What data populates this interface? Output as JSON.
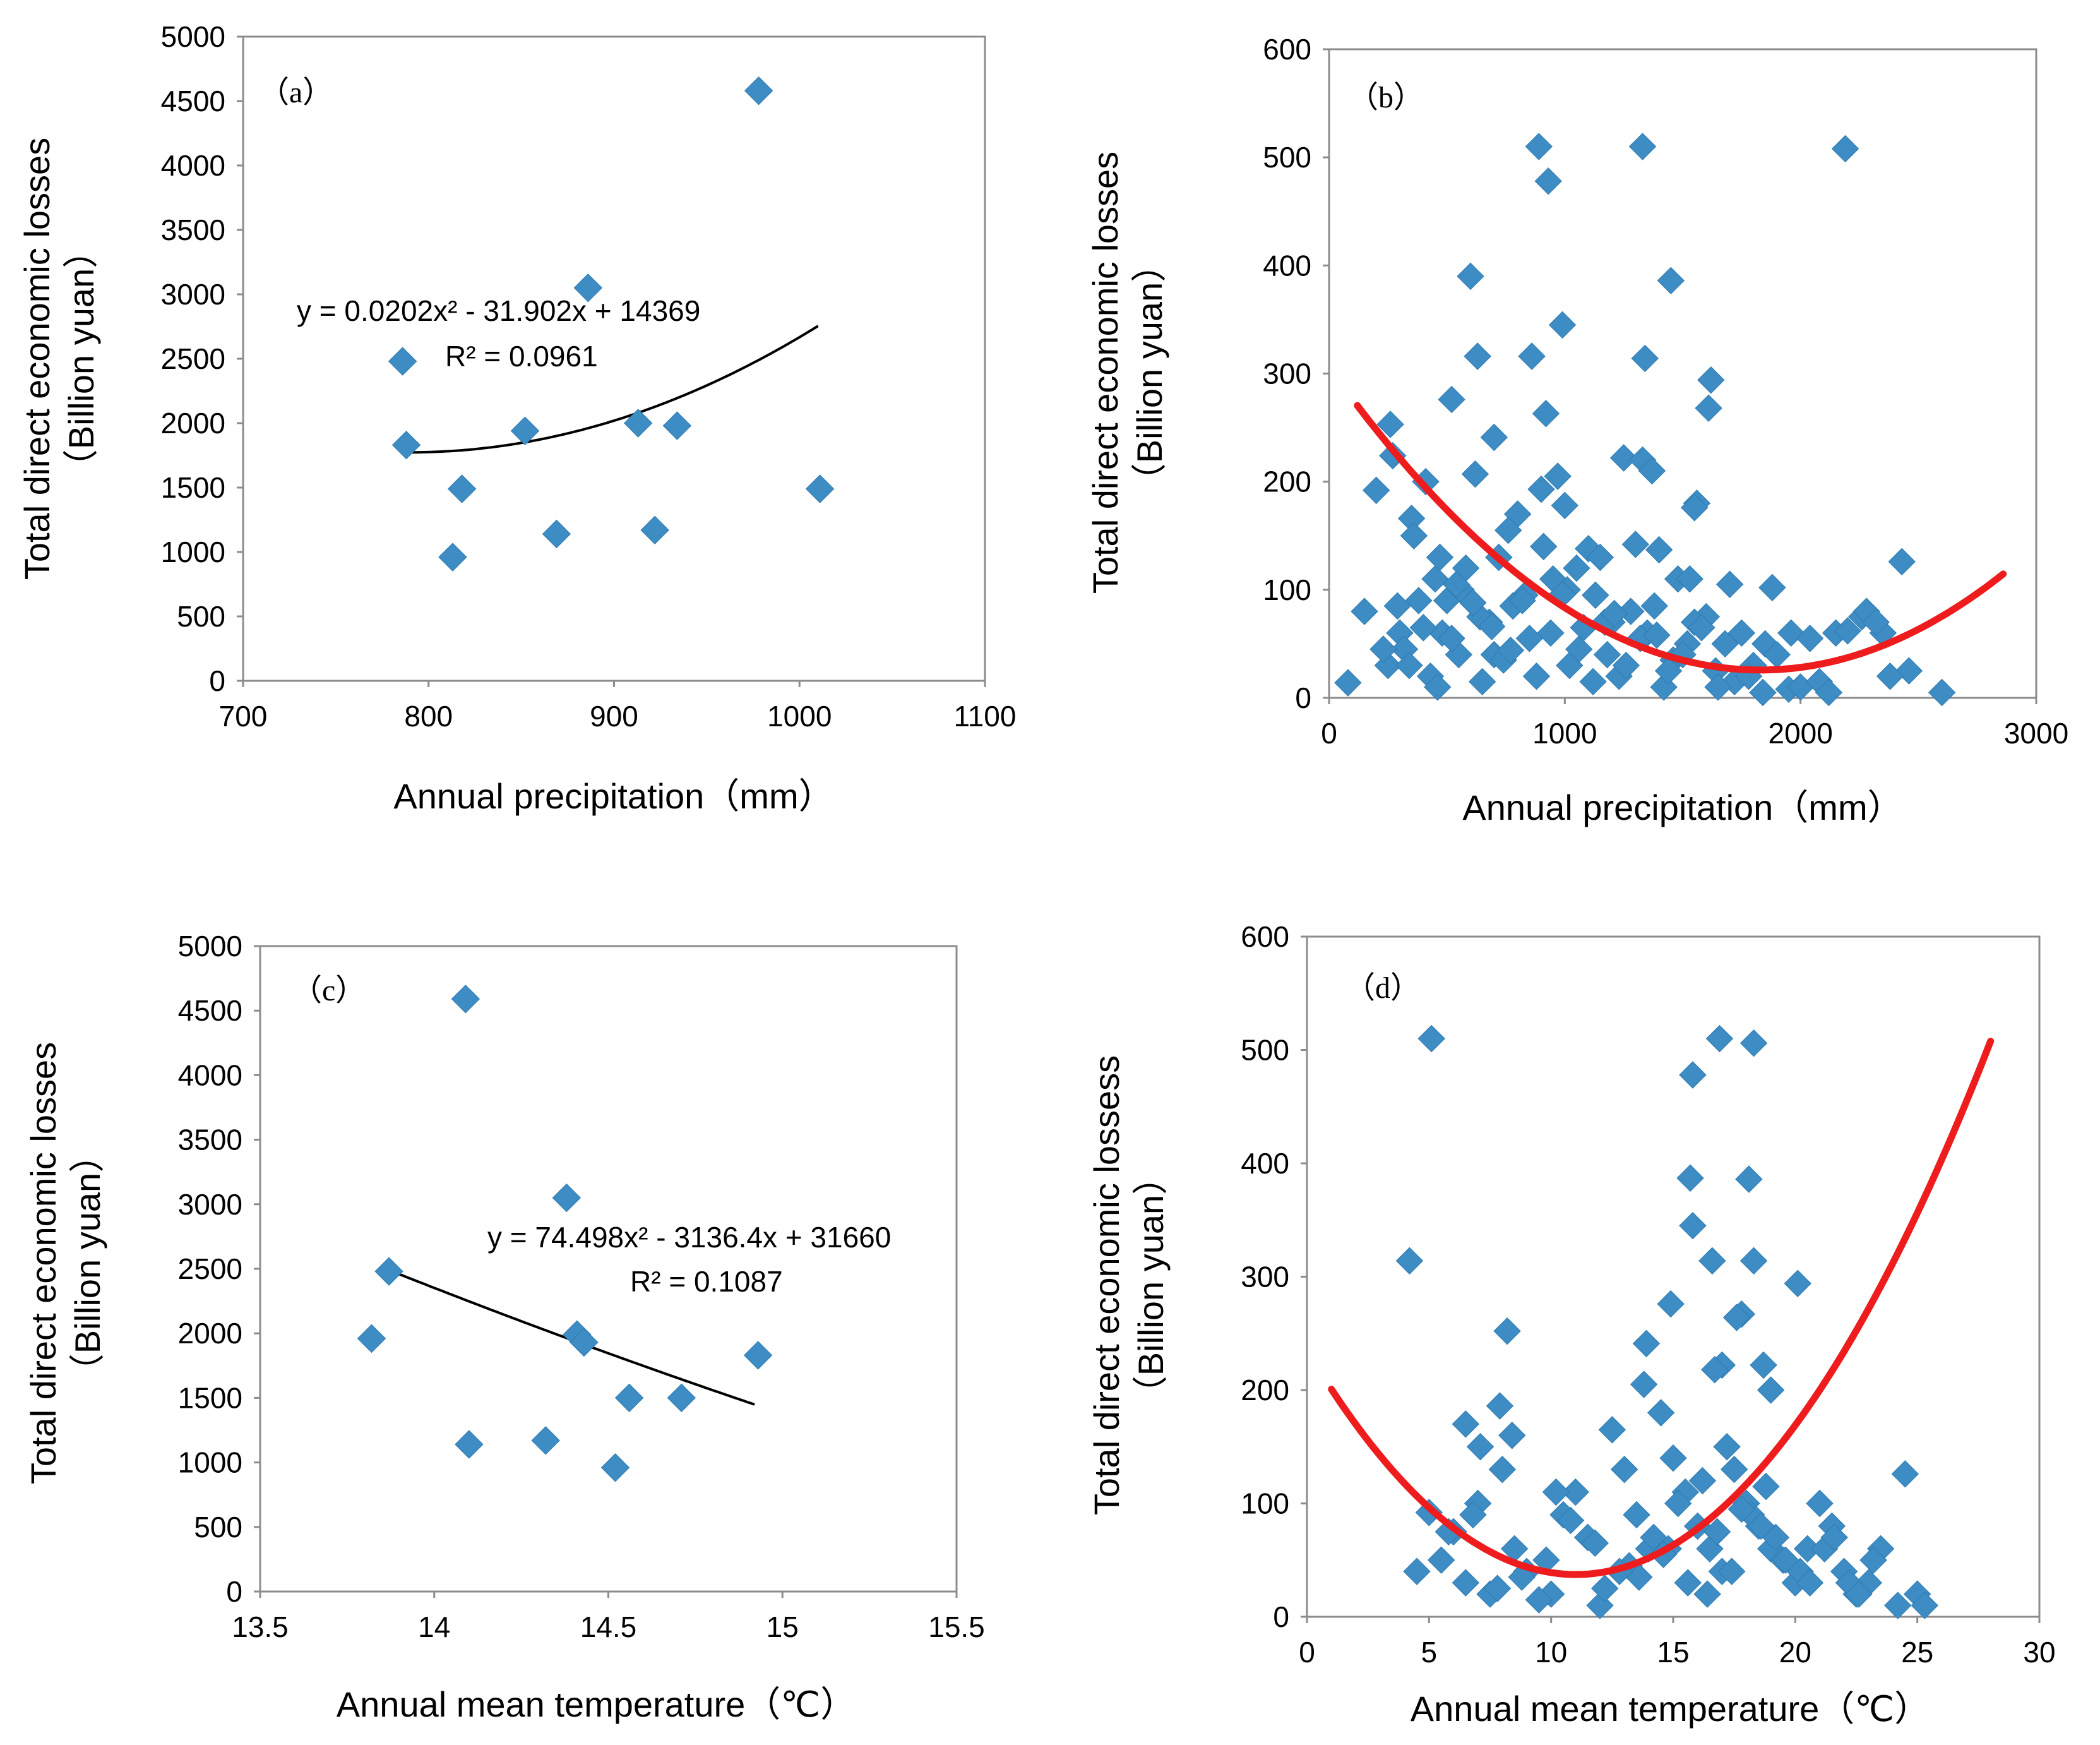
{
  "colors": {
    "marker": "#3d8cc4",
    "trend_a": "#000000",
    "trend_b": "#ee1c1c",
    "frame": "#8c8c8c"
  },
  "chart_data": [
    {
      "id": "a",
      "type": "scatter",
      "panel_label": "（a）",
      "xlabel": "Annual precipitation（mm）",
      "ylabel_line1": "Total direct economic losses",
      "ylabel_line2": "（Billion yuan）",
      "xlim": [
        700,
        1100
      ],
      "ylim": [
        0,
        5000
      ],
      "xticks": [
        700,
        800,
        900,
        1000,
        1100
      ],
      "yticks": [
        0,
        500,
        1000,
        1500,
        2000,
        2500,
        3000,
        3500,
        4000,
        4500,
        5000
      ],
      "x": [
        786,
        788,
        813,
        818,
        852,
        869,
        886,
        913,
        922,
        934,
        978,
        1011
      ],
      "y": [
        2480,
        1830,
        960,
        1490,
        1940,
        1140,
        3050,
        2000,
        1170,
        1980,
        4580,
        1490
      ],
      "fit": {
        "kind": "poly2",
        "a": 0.0202,
        "b": -31.902,
        "c": 14369,
        "x_range": [
          790,
          1010
        ]
      },
      "equation": {
        "text": "y = 0.0202x² - 31.902x + 14369",
        "r2": "R² = 0.0961"
      }
    },
    {
      "id": "b",
      "type": "scatter",
      "panel_label": "（b）",
      "xlabel": "Annual precipitation（mm）",
      "ylabel_line1": "Total direct economic losses",
      "ylabel_line2": "（Billion yuan）",
      "xlim": [
        0,
        3000
      ],
      "ylim": [
        0,
        600
      ],
      "xticks": [
        0,
        1000,
        2000,
        3000
      ],
      "yticks": [
        0,
        100,
        200,
        300,
        400,
        500,
        600
      ],
      "x": [
        890,
        1330,
        2190,
        930,
        600,
        1450,
        630,
        990,
        860,
        1340,
        1620,
        1610,
        520,
        920,
        700,
        1250,
        1330,
        1370,
        200,
        260,
        270,
        410,
        620,
        900,
        970,
        1560,
        1550,
        350,
        800,
        1000,
        1100,
        1300,
        1400,
        1150,
        1700,
        1880,
        1960,
        2150,
        2260,
        2350,
        2430,
        2460,
        2380,
        2040,
        1950,
        2600,
        80,
        150,
        300,
        450,
        500,
        550,
        680,
        720,
        760,
        830,
        1050,
        1200,
        1480,
        1520,
        1600,
        1750,
        1800,
        1850,
        1900,
        2000,
        2080,
        2120,
        250,
        320,
        380,
        430,
        480,
        560,
        650,
        700,
        780,
        850,
        950,
        1020,
        1080,
        1130,
        1180,
        1230,
        1280,
        1350,
        1420,
        1460,
        1550,
        1640,
        1680,
        1720,
        230,
        290,
        340,
        400,
        460,
        520,
        580,
        640,
        740,
        820,
        880,
        940,
        1010,
        1060,
        1120,
        1170,
        1260,
        1320,
        1380,
        1440,
        1500,
        1580,
        1650,
        1780,
        1840,
        360,
        470,
        540,
        610,
        690,
        770,
        910,
        990,
        1210,
        1390,
        1530,
        2200,
        2280,
        2320
      ],
      "y": [
        510,
        510,
        508,
        478,
        390,
        386,
        316,
        345,
        316,
        314,
        294,
        268,
        276,
        263,
        241,
        222,
        220,
        210,
        192,
        253,
        224,
        200,
        207,
        193,
        205,
        180,
        176,
        166,
        170,
        178,
        138,
        142,
        137,
        130,
        105,
        102,
        60,
        60,
        75,
        60,
        126,
        25,
        20,
        55,
        8,
        5,
        14,
        80,
        60,
        110,
        90,
        40,
        70,
        130,
        155,
        95,
        120,
        70,
        110,
        50,
        75,
        60,
        30,
        50,
        40,
        10,
        15,
        5,
        30,
        45,
        90,
        20,
        60,
        100,
        15,
        40,
        85,
        55,
        110,
        30,
        65,
        95,
        40,
        20,
        80,
        60,
        10,
        35,
        70,
        25,
        50,
        15,
        45,
        85,
        30,
        65,
        10,
        55,
        120,
        75,
        35,
        90,
        20,
        60,
        100,
        45,
        15,
        70,
        30,
        55,
        85,
        25,
        40,
        65,
        10,
        20,
        5,
        150,
        130,
        105,
        88,
        66,
        44,
        140,
        96,
        78,
        58,
        110,
        62,
        80,
        70
      ],
      "fit": {
        "kind": "poly2",
        "a": 8.37e-05,
        "b": -0.3063,
        "c": 306,
        "x_range": [
          120,
          2860
        ]
      }
    },
    {
      "id": "c",
      "type": "scatter",
      "panel_label": "（c）",
      "xlabel": "Annual mean temperature（℃）",
      "ylabel_line1": "Total direct economic losses",
      "ylabel_line2": "（Billion yuan）",
      "xlim": [
        13.5,
        15.5
      ],
      "ylim": [
        0,
        5000
      ],
      "xticks": [
        13.5,
        14,
        14.5,
        15,
        15.5
      ],
      "yticks": [
        0,
        500,
        1000,
        1500,
        2000,
        2500,
        3000,
        3500,
        4000,
        4500,
        5000
      ],
      "x": [
        13.82,
        13.87,
        14.09,
        14.1,
        14.32,
        14.38,
        14.41,
        14.43,
        14.52,
        14.56,
        14.71,
        14.93
      ],
      "y": [
        1960,
        2480,
        4590,
        1140,
        1170,
        3050,
        1990,
        1930,
        960,
        1500,
        1500,
        1830
      ],
      "fit": {
        "kind": "poly2",
        "a": 74.498,
        "b": -3136.4,
        "c": 31660,
        "x_range": [
          13.85,
          14.92
        ]
      },
      "equation": {
        "text": "y = 74.498x² - 3136.4x + 31660",
        "r2": "R² = 0.1087"
      }
    },
    {
      "id": "d",
      "type": "scatter",
      "panel_label": "（d）",
      "xlabel": "Annual mean temperature（℃）",
      "ylabel_line1": "Total direct economic lossess",
      "ylabel_line2": "（Billion yuan）",
      "xlim": [
        0,
        30
      ],
      "ylim": [
        0,
        600
      ],
      "xticks": [
        0,
        5,
        10,
        15,
        20,
        25,
        30
      ],
      "yticks": [
        0,
        100,
        200,
        300,
        400,
        500,
        600
      ],
      "x": [
        5.1,
        16.9,
        18.3,
        15.8,
        15.7,
        18.1,
        15.8,
        4.2,
        16.6,
        18.3,
        20.1,
        17.8,
        17.6,
        8.2,
        14.9,
        13.9,
        17.0,
        16.7,
        18.7,
        19.0,
        13.8,
        7.9,
        6.5,
        8.4,
        7.1,
        24.5,
        5.0,
        4.5,
        6.0,
        7.0,
        8.0,
        9.0,
        10.0,
        10.5,
        11.0,
        11.5,
        12.0,
        12.5,
        13.0,
        13.5,
        14.0,
        14.5,
        15.0,
        15.5,
        16.0,
        16.5,
        17.0,
        17.5,
        18.0,
        18.5,
        19.0,
        19.5,
        20.0,
        20.5,
        21.0,
        21.5,
        22.0,
        22.5,
        23.0,
        23.5,
        25.0,
        25.3,
        5.5,
        6.5,
        7.5,
        8.5,
        9.5,
        10.8,
        12.2,
        13.2,
        14.2,
        15.2,
        16.2,
        17.2,
        18.2,
        19.2,
        20.2,
        21.2,
        22.2,
        23.2,
        24.2,
        14.8,
        15.6,
        16.4,
        17.4,
        18.6,
        19.6,
        20.6,
        21.6,
        22.6,
        13.6,
        14.6,
        16.8,
        17.8,
        18.8,
        12.8,
        11.8,
        10.2,
        9.8,
        8.8,
        7.8,
        6.8,
        5.8
      ],
      "y": [
        510,
        510,
        506,
        478,
        387,
        386,
        345,
        314,
        314,
        314,
        294,
        267,
        264,
        252,
        276,
        241,
        222,
        218,
        222,
        200,
        205,
        186,
        170,
        160,
        150,
        126,
        92,
        40,
        75,
        100,
        130,
        40,
        20,
        90,
        110,
        70,
        10,
        165,
        130,
        90,
        60,
        180,
        140,
        110,
        80,
        60,
        40,
        130,
        100,
        80,
        60,
        50,
        30,
        60,
        100,
        80,
        40,
        20,
        30,
        60,
        20,
        10,
        50,
        30,
        20,
        60,
        15,
        85,
        25,
        45,
        70,
        100,
        120,
        150,
        90,
        70,
        40,
        60,
        30,
        50,
        10,
        60,
        30,
        20,
        40,
        80,
        50,
        30,
        70,
        20,
        35,
        55,
        75,
        95,
        115,
        40,
        65,
        110,
        50,
        35,
        25,
        90,
        75
      ],
      "fit": {
        "kind": "poly2",
        "a": 1.63,
        "b": -35.9,
        "c": 235,
        "x_range": [
          1,
          28
        ]
      }
    }
  ]
}
